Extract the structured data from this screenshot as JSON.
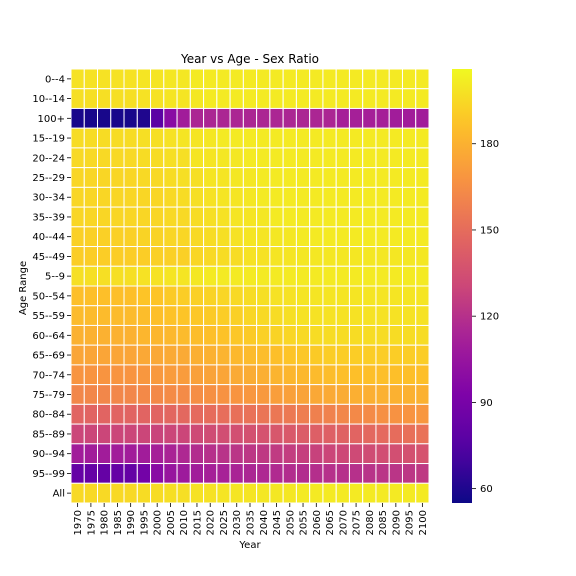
{
  "chart_data": {
    "type": "heatmap",
    "title": "Year vs Age - Sex Ratio",
    "xlabel": "Year",
    "ylabel": "Age Range",
    "colormap": "plasma",
    "color_range": [
      55,
      206
    ],
    "colorbar_ticks": [
      60,
      90,
      120,
      150,
      180
    ],
    "x": [
      "1970",
      "1975",
      "1980",
      "1985",
      "1990",
      "1995",
      "2000",
      "2005",
      "2010",
      "2015",
      "2020",
      "2025",
      "2030",
      "2035",
      "2040",
      "2045",
      "2050",
      "2055",
      "2060",
      "2065",
      "2070",
      "2075",
      "2080",
      "2085",
      "2090",
      "2095",
      "2100"
    ],
    "y": [
      "0--4",
      "10--14",
      "100+",
      "15--19",
      "20--24",
      "25--29",
      "30--34",
      "35--39",
      "40--44",
      "45--49",
      "5--9",
      "50--54",
      "55--59",
      "60--64",
      "65--69",
      "70--74",
      "75--79",
      "80--84",
      "85--89",
      "90--94",
      "95--99",
      "All"
    ],
    "values": [
      [
        198,
        198,
        198,
        198,
        198,
        199,
        199,
        200,
        200,
        201,
        201,
        201,
        201,
        201,
        201,
        201,
        201,
        201,
        201,
        201,
        201,
        201,
        201,
        201,
        201,
        201,
        201
      ],
      [
        197,
        197,
        197,
        197,
        197,
        198,
        198,
        199,
        199,
        200,
        201,
        201,
        201,
        201,
        201,
        201,
        201,
        201,
        201,
        201,
        201,
        201,
        201,
        201,
        201,
        201,
        201
      ],
      [
        58,
        58,
        58,
        58,
        58,
        60,
        78,
        98,
        110,
        115,
        115,
        115,
        115,
        115,
        115,
        115,
        115,
        115,
        115,
        115,
        112,
        112,
        112,
        112,
        110,
        110,
        110
      ],
      [
        196,
        196,
        196,
        196,
        196,
        197,
        197,
        198,
        199,
        199,
        200,
        201,
        201,
        201,
        201,
        201,
        201,
        201,
        201,
        201,
        201,
        201,
        201,
        201,
        201,
        201,
        201
      ],
      [
        195,
        195,
        195,
        195,
        195,
        196,
        196,
        197,
        197,
        199,
        199,
        200,
        200,
        201,
        201,
        201,
        201,
        201,
        201,
        201,
        201,
        201,
        201,
        201,
        201,
        201,
        201
      ],
      [
        194,
        194,
        194,
        194,
        194,
        195,
        195,
        196,
        197,
        197,
        199,
        199,
        200,
        200,
        201,
        201,
        201,
        201,
        201,
        201,
        201,
        201,
        201,
        201,
        201,
        201,
        201
      ],
      [
        194,
        194,
        194,
        194,
        194,
        194,
        194,
        195,
        196,
        197,
        198,
        199,
        199,
        200,
        201,
        201,
        201,
        201,
        201,
        201,
        201,
        201,
        201,
        201,
        201,
        201,
        201
      ],
      [
        194,
        194,
        194,
        194,
        194,
        194,
        194,
        195,
        195,
        196,
        197,
        198,
        199,
        199,
        200,
        201,
        201,
        201,
        201,
        201,
        201,
        201,
        201,
        201,
        201,
        201,
        201
      ],
      [
        192,
        192,
        192,
        192,
        192,
        193,
        193,
        194,
        194,
        195,
        196,
        197,
        198,
        199,
        199,
        200,
        200,
        201,
        201,
        201,
        201,
        201,
        201,
        201,
        201,
        201,
        201
      ],
      [
        191,
        191,
        191,
        191,
        191,
        191,
        192,
        192,
        192,
        194,
        195,
        196,
        196,
        198,
        198,
        199,
        199,
        200,
        200,
        200,
        200,
        200,
        200,
        200,
        200,
        200,
        200
      ],
      [
        197,
        197,
        197,
        197,
        197,
        198,
        198,
        199,
        199,
        200,
        201,
        201,
        201,
        201,
        201,
        201,
        201,
        201,
        201,
        201,
        201,
        201,
        201,
        201,
        201,
        201,
        201
      ],
      [
        186,
        186,
        186,
        186,
        186,
        188,
        188,
        190,
        191,
        192,
        193,
        194,
        195,
        196,
        197,
        198,
        198,
        199,
        199,
        199,
        199,
        199,
        199,
        199,
        199,
        199,
        199
      ],
      [
        184,
        184,
        184,
        184,
        184,
        185,
        186,
        187,
        188,
        189,
        190,
        191,
        192,
        194,
        195,
        196,
        197,
        198,
        198,
        198,
        198,
        198,
        198,
        198,
        198,
        198,
        198
      ],
      [
        180,
        180,
        180,
        180,
        180,
        182,
        182,
        183,
        184,
        185,
        186,
        187,
        189,
        190,
        192,
        193,
        194,
        195,
        196,
        196,
        196,
        196,
        196,
        196,
        196,
        196,
        196
      ],
      [
        175,
        175,
        175,
        175,
        175,
        176,
        176,
        177,
        177,
        179,
        180,
        181,
        183,
        184,
        185,
        186,
        188,
        189,
        190,
        191,
        191,
        191,
        191,
        191,
        191,
        191,
        191
      ],
      [
        168,
        168,
        168,
        168,
        168,
        169,
        170,
        171,
        171,
        173,
        174,
        175,
        177,
        178,
        179,
        181,
        182,
        183,
        184,
        185,
        186,
        186,
        186,
        186,
        186,
        186,
        186
      ],
      [
        162,
        162,
        162,
        162,
        162,
        163,
        163,
        164,
        164,
        165,
        166,
        167,
        168,
        169,
        170,
        172,
        173,
        174,
        176,
        177,
        178,
        179,
        179,
        180,
        180,
        180,
        180
      ],
      [
        146,
        146,
        146,
        146,
        146,
        146,
        146,
        147,
        148,
        149,
        150,
        151,
        152,
        153,
        154,
        155,
        156,
        158,
        159,
        160,
        162,
        163,
        164,
        166,
        167,
        168,
        169
      ],
      [
        130,
        130,
        130,
        130,
        130,
        130,
        129,
        130,
        130,
        132,
        133,
        134,
        135,
        136,
        137,
        139,
        140,
        142,
        143,
        144,
        145,
        146,
        148,
        149,
        150,
        152,
        153
      ],
      [
        110,
        110,
        110,
        110,
        110,
        110,
        112,
        114,
        116,
        118,
        120,
        121,
        122,
        123,
        124,
        125,
        126,
        127,
        128,
        130,
        131,
        132,
        133,
        134,
        135,
        136,
        137
      ],
      [
        82,
        82,
        82,
        82,
        82,
        88,
        98,
        105,
        108,
        110,
        112,
        113,
        114,
        115,
        116,
        117,
        118,
        118,
        119,
        120,
        120,
        120,
        121,
        122,
        122,
        123,
        124
      ],
      [
        195,
        195,
        195,
        195,
        195,
        196,
        196,
        197,
        197,
        198,
        198,
        199,
        199,
        199,
        200,
        200,
        200,
        201,
        201,
        201,
        201,
        201,
        201,
        201,
        201,
        201,
        201
      ]
    ]
  }
}
